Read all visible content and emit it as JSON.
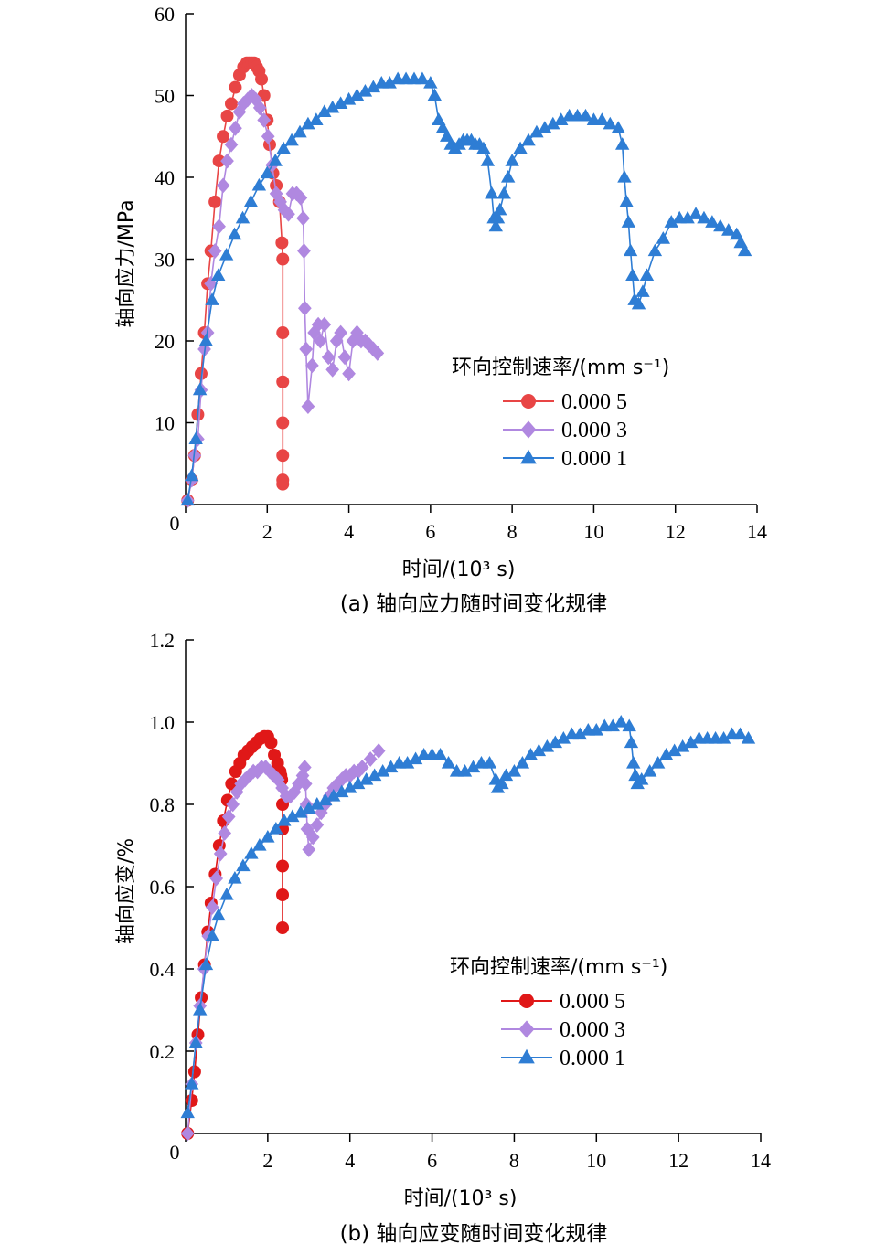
{
  "chart_data": [
    {
      "type": "line",
      "caption": "(a) 轴向应力随时间变化规律",
      "xlabel": "时间/(10³ s)",
      "ylabel": "轴向应力/MPa",
      "xlim": [
        0,
        14
      ],
      "ylim": [
        0,
        60
      ],
      "xticks": [
        0,
        2,
        4,
        6,
        8,
        10,
        12,
        14
      ],
      "yticks": [
        10,
        20,
        30,
        40,
        50,
        60
      ],
      "legend_title": "环向控制速率/(mm  s⁻¹)",
      "legend_position": "center-right",
      "series": [
        {
          "name": "0.000 5",
          "color": "#e84545",
          "marker": "circle",
          "x": [
            0.05,
            0.15,
            0.22,
            0.3,
            0.38,
            0.46,
            0.54,
            0.62,
            0.72,
            0.82,
            0.92,
            1.02,
            1.12,
            1.22,
            1.32,
            1.42,
            1.5,
            1.56,
            1.62,
            1.68,
            1.74,
            1.8,
            1.86,
            1.92,
            2.0,
            2.06,
            2.14,
            2.22,
            2.3,
            2.36,
            2.38,
            2.38,
            2.38,
            2.38,
            2.38,
            2.38,
            2.38
          ],
          "y": [
            0.5,
            3,
            6,
            11,
            16,
            21,
            27,
            31,
            37,
            42,
            45,
            47.5,
            49,
            51,
            52.5,
            53.5,
            54,
            54,
            54,
            54,
            53.5,
            53,
            52,
            50,
            47,
            44,
            40.5,
            39,
            37,
            32,
            30,
            21,
            15,
            10,
            6,
            3,
            2.5
          ]
        },
        {
          "name": "0.000 3",
          "color": "#b088e0",
          "marker": "diamond",
          "x": [
            0.05,
            0.15,
            0.22,
            0.3,
            0.38,
            0.46,
            0.54,
            0.62,
            0.72,
            0.82,
            0.92,
            1.02,
            1.12,
            1.22,
            1.32,
            1.42,
            1.52,
            1.62,
            1.72,
            1.82,
            1.92,
            2.02,
            2.12,
            2.22,
            2.32,
            2.42,
            2.52,
            2.62,
            2.72,
            2.82,
            2.88,
            2.9,
            2.92,
            2.95,
            3.0,
            3.1,
            3.15,
            3.25,
            3.3,
            3.4,
            3.5,
            3.6,
            3.7,
            3.8,
            3.9,
            4.0,
            4.1,
            4.2,
            4.3,
            4.4,
            4.5,
            4.6,
            4.7
          ],
          "y": [
            0.5,
            3,
            6,
            8,
            14,
            19,
            21,
            27,
            31,
            34,
            39,
            42,
            44,
            46,
            48,
            49,
            49.5,
            50,
            49.5,
            48.5,
            47,
            45,
            41.5,
            38,
            37,
            36,
            35.5,
            38,
            38,
            37.5,
            35,
            31,
            24,
            19,
            12,
            17,
            21,
            22,
            20,
            22,
            18,
            16.5,
            20,
            21,
            18,
            16,
            20,
            21,
            20,
            20,
            19.5,
            19,
            18.5
          ]
        },
        {
          "name": "0.000 1",
          "color": "#2e7dd4",
          "marker": "triangle",
          "x": [
            0.05,
            0.15,
            0.25,
            0.35,
            0.5,
            0.65,
            0.8,
            1.0,
            1.2,
            1.4,
            1.6,
            1.8,
            2.0,
            2.2,
            2.4,
            2.6,
            2.8,
            3.0,
            3.2,
            3.4,
            3.6,
            3.8,
            4.0,
            4.2,
            4.4,
            4.6,
            4.8,
            5.0,
            5.2,
            5.4,
            5.6,
            5.8,
            6.0,
            6.1,
            6.2,
            6.3,
            6.4,
            6.5,
            6.6,
            6.7,
            6.8,
            6.9,
            7.0,
            7.1,
            7.2,
            7.3,
            7.4,
            7.5,
            7.55,
            7.6,
            7.65,
            7.7,
            7.8,
            7.9,
            8.0,
            8.2,
            8.4,
            8.6,
            8.8,
            9.0,
            9.2,
            9.4,
            9.6,
            9.8,
            10.0,
            10.2,
            10.4,
            10.6,
            10.7,
            10.75,
            10.8,
            10.85,
            10.9,
            10.95,
            11.0,
            11.1,
            11.2,
            11.3,
            11.5,
            11.7,
            11.9,
            12.1,
            12.3,
            12.5,
            12.7,
            12.9,
            13.1,
            13.3,
            13.5,
            13.6,
            13.7
          ],
          "y": [
            0.5,
            3.5,
            8,
            14,
            20,
            25,
            28,
            30.5,
            33,
            35,
            37,
            39,
            40.5,
            42,
            43.5,
            44.5,
            45.5,
            46.5,
            47,
            48,
            48.5,
            49,
            49.5,
            50,
            50.5,
            51,
            51.5,
            51.5,
            52,
            52,
            52,
            52,
            51.5,
            50,
            47,
            46,
            45,
            44,
            43.5,
            44,
            44.5,
            44.5,
            44.5,
            44,
            44,
            43.5,
            42,
            38,
            35,
            34,
            35,
            36,
            38,
            40,
            42,
            43.5,
            44.5,
            45.5,
            46,
            46.5,
            47,
            47.5,
            47.5,
            47.5,
            47,
            47,
            46.5,
            46,
            44,
            40,
            37,
            34.5,
            31,
            28,
            25,
            24.5,
            26,
            28,
            31,
            32.5,
            34.5,
            35,
            35,
            35.5,
            35,
            34.5,
            34,
            33.5,
            33,
            32,
            31
          ]
        }
      ]
    },
    {
      "type": "line",
      "caption": "(b) 轴向应变随时间变化规律",
      "xlabel": "时间/(10³ s)",
      "ylabel": "轴向应变/%",
      "xlim": [
        0,
        14
      ],
      "ylim": [
        0,
        1.2
      ],
      "xticks": [
        0,
        2,
        4,
        6,
        8,
        10,
        12,
        14
      ],
      "yticks": [
        0.2,
        0.4,
        0.6,
        0.8,
        1.0,
        1.2
      ],
      "legend_title": "环向控制速率/(mm  s⁻¹)",
      "legend_position": "center-right",
      "series": [
        {
          "name": "0.000 5",
          "color": "#e01818",
          "marker": "circle",
          "x": [
            0.05,
            0.15,
            0.22,
            0.3,
            0.38,
            0.46,
            0.54,
            0.62,
            0.72,
            0.82,
            0.92,
            1.02,
            1.12,
            1.22,
            1.32,
            1.42,
            1.52,
            1.62,
            1.72,
            1.82,
            1.92,
            2.0,
            2.08,
            2.16,
            2.24,
            2.3,
            2.32,
            2.34,
            2.36,
            2.36,
            2.36,
            2.36,
            2.36
          ],
          "y": [
            0.0,
            0.08,
            0.15,
            0.24,
            0.33,
            0.41,
            0.49,
            0.56,
            0.63,
            0.7,
            0.76,
            0.81,
            0.85,
            0.88,
            0.9,
            0.92,
            0.93,
            0.94,
            0.95,
            0.96,
            0.965,
            0.965,
            0.95,
            0.92,
            0.9,
            0.88,
            0.87,
            0.86,
            0.8,
            0.74,
            0.65,
            0.58,
            0.5
          ]
        },
        {
          "name": "0.000 3",
          "color": "#b088e0",
          "marker": "diamond",
          "x": [
            0.05,
            0.15,
            0.25,
            0.35,
            0.45,
            0.55,
            0.65,
            0.75,
            0.85,
            0.95,
            1.05,
            1.15,
            1.25,
            1.35,
            1.45,
            1.55,
            1.65,
            1.75,
            1.85,
            1.95,
            2.05,
            2.15,
            2.25,
            2.35,
            2.45,
            2.55,
            2.65,
            2.75,
            2.85,
            2.9,
            2.92,
            2.94,
            2.96,
            3.0,
            3.1,
            3.2,
            3.3,
            3.4,
            3.5,
            3.6,
            3.7,
            3.8,
            3.9,
            4.0,
            4.1,
            4.2,
            4.3,
            4.5,
            4.7
          ],
          "y": [
            0.0,
            0.12,
            0.22,
            0.31,
            0.4,
            0.48,
            0.55,
            0.62,
            0.68,
            0.73,
            0.77,
            0.8,
            0.83,
            0.85,
            0.86,
            0.87,
            0.88,
            0.88,
            0.89,
            0.89,
            0.88,
            0.87,
            0.86,
            0.84,
            0.82,
            0.82,
            0.83,
            0.85,
            0.87,
            0.89,
            0.85,
            0.8,
            0.74,
            0.69,
            0.72,
            0.75,
            0.78,
            0.8,
            0.82,
            0.84,
            0.85,
            0.86,
            0.87,
            0.87,
            0.88,
            0.88,
            0.89,
            0.91,
            0.93
          ]
        },
        {
          "name": "0.000 1",
          "color": "#2e7dd4",
          "marker": "triangle",
          "x": [
            0.05,
            0.15,
            0.25,
            0.35,
            0.5,
            0.65,
            0.8,
            1.0,
            1.2,
            1.4,
            1.6,
            1.8,
            2.0,
            2.2,
            2.4,
            2.6,
            2.8,
            3.0,
            3.2,
            3.4,
            3.6,
            3.8,
            4.0,
            4.2,
            4.4,
            4.6,
            4.8,
            5.0,
            5.2,
            5.4,
            5.6,
            5.8,
            6.0,
            6.2,
            6.4,
            6.6,
            6.8,
            7.0,
            7.2,
            7.4,
            7.55,
            7.6,
            7.7,
            7.8,
            8.0,
            8.2,
            8.4,
            8.6,
            8.8,
            9.0,
            9.2,
            9.4,
            9.6,
            9.8,
            10.0,
            10.2,
            10.4,
            10.6,
            10.8,
            10.85,
            10.9,
            10.95,
            11.0,
            11.1,
            11.3,
            11.5,
            11.7,
            11.9,
            12.1,
            12.3,
            12.5,
            12.7,
            12.9,
            13.1,
            13.3,
            13.5,
            13.7
          ],
          "y": [
            0.05,
            0.12,
            0.22,
            0.3,
            0.41,
            0.48,
            0.53,
            0.58,
            0.62,
            0.65,
            0.68,
            0.7,
            0.72,
            0.74,
            0.76,
            0.77,
            0.78,
            0.79,
            0.8,
            0.81,
            0.82,
            0.83,
            0.84,
            0.85,
            0.86,
            0.87,
            0.88,
            0.89,
            0.9,
            0.9,
            0.91,
            0.92,
            0.92,
            0.92,
            0.9,
            0.88,
            0.88,
            0.89,
            0.9,
            0.9,
            0.86,
            0.84,
            0.85,
            0.87,
            0.88,
            0.9,
            0.92,
            0.93,
            0.94,
            0.95,
            0.96,
            0.97,
            0.97,
            0.98,
            0.98,
            0.99,
            0.99,
            1.0,
            0.99,
            0.95,
            0.9,
            0.87,
            0.85,
            0.86,
            0.88,
            0.9,
            0.92,
            0.93,
            0.94,
            0.95,
            0.96,
            0.96,
            0.96,
            0.96,
            0.97,
            0.97,
            0.96
          ]
        }
      ]
    }
  ]
}
